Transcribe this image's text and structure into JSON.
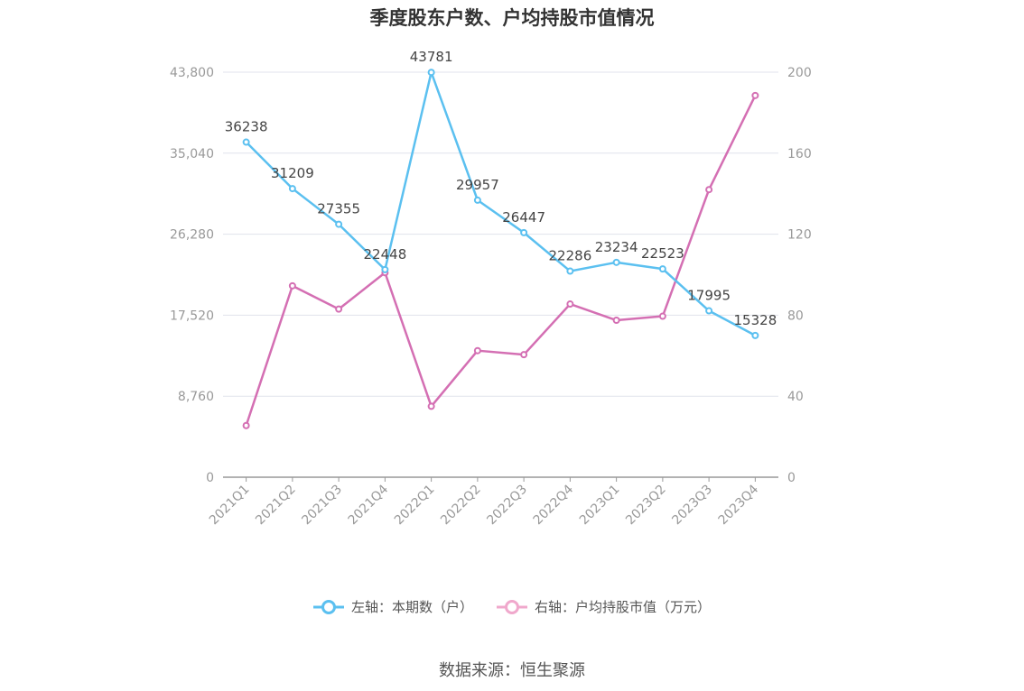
{
  "title": "季度股东户数、户均持股市值情况",
  "source": "数据来源：恒生聚源",
  "legend": [
    {
      "label": "左轴：本期数（户）",
      "color": "#5bc0f0"
    },
    {
      "label": "右轴：户均持股市值（万元）",
      "color": "#f0a8cc"
    }
  ],
  "chart_data": {
    "type": "line",
    "categories": [
      "2021Q1",
      "2021Q2",
      "2021Q3",
      "2021Q4",
      "2022Q1",
      "2022Q2",
      "2022Q3",
      "2022Q4",
      "2023Q1",
      "2023Q2",
      "2023Q3",
      "2023Q4"
    ],
    "left_axis": {
      "ylim": [
        0,
        43800
      ],
      "ticks": [
        0,
        8760,
        17520,
        26280,
        35040,
        43800
      ],
      "tick_labels": [
        "0",
        "8,760",
        "17,520",
        "26,280",
        "35,040",
        "43,800"
      ]
    },
    "right_axis": {
      "ylim": [
        0,
        200
      ],
      "ticks": [
        0,
        40,
        80,
        120,
        160,
        200
      ],
      "tick_labels": [
        "0",
        "40",
        "80",
        "120",
        "160",
        "200"
      ]
    },
    "grid": true,
    "series": [
      {
        "name": "左轴：本期数（户）",
        "axis": "left",
        "color": "#5bc0f0",
        "values": [
          36238,
          31209,
          27355,
          22448,
          43781,
          29957,
          26447,
          22286,
          23234,
          22523,
          17995,
          15328
        ],
        "labels": [
          "36238",
          "31209",
          "27355",
          "22448",
          "43781",
          "29957",
          "26447",
          "22286",
          "23234",
          "22523",
          "17995",
          "15328"
        ]
      },
      {
        "name": "右轴：户均持股市值（万元）",
        "axis": "right",
        "color": "#d46fb3",
        "values": [
          25.5,
          94.5,
          83.0,
          101.0,
          35.0,
          62.5,
          60.5,
          85.5,
          77.5,
          79.5,
          142.0,
          188.5
        ]
      }
    ]
  }
}
